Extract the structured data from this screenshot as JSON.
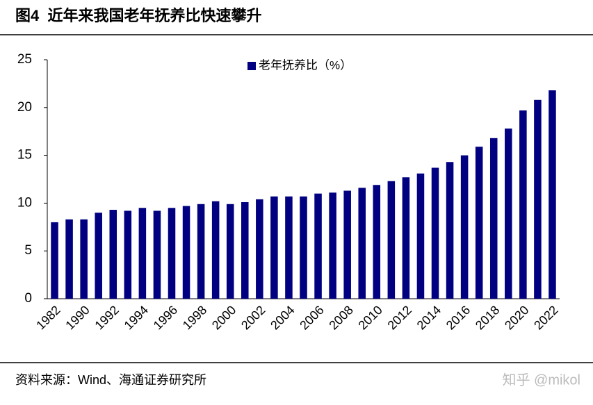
{
  "chart_data": {
    "type": "bar",
    "title": "图4  近年来我国老年抚养比快速攀升",
    "legend": "老年抚养比（%）",
    "source": "资料来源：Wind、海通证券研究所",
    "watermark": "知乎 @mikol",
    "categories": [
      "1982",
      null,
      "1990",
      null,
      "1992",
      null,
      "1994",
      null,
      "1996",
      null,
      "1998",
      null,
      "2000",
      null,
      "2002",
      null,
      "2004",
      null,
      "2006",
      null,
      "2008",
      null,
      "2010",
      null,
      "2012",
      null,
      "2014",
      null,
      "2016",
      null,
      "2018",
      null,
      "2020",
      null,
      "2022"
    ],
    "values": [
      8.0,
      8.3,
      8.3,
      9.0,
      9.3,
      9.2,
      9.5,
      9.2,
      9.5,
      9.7,
      9.9,
      10.2,
      9.9,
      10.1,
      10.4,
      10.7,
      10.7,
      10.7,
      11.0,
      11.1,
      11.3,
      11.6,
      11.9,
      12.3,
      12.7,
      13.1,
      13.7,
      14.3,
      15.0,
      15.9,
      16.8,
      17.8,
      19.7,
      20.8,
      21.8
    ],
    "color": "#000080",
    "ylim": [
      0,
      25
    ],
    "yticks": [
      0,
      5,
      10,
      15,
      20,
      25
    ],
    "grid": false
  }
}
